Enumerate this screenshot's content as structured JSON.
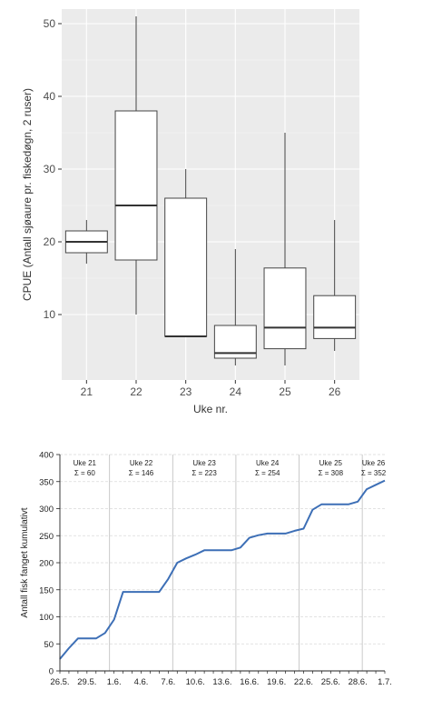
{
  "chart_data": [
    {
      "type": "box",
      "title": "",
      "xlabel": "Uke nr.",
      "ylabel": "CPUE (Antall sjøaure pr. fiskedøgn, 2 ruser)",
      "ylim": [
        1,
        52
      ],
      "yticks": [
        10,
        20,
        30,
        40,
        50
      ],
      "grid": true,
      "background": "#ebebeb",
      "categories": [
        "21",
        "22",
        "23",
        "24",
        "25",
        "26"
      ],
      "boxes": [
        {
          "week": "21",
          "min": 17,
          "q1": 18.5,
          "median": 20,
          "q3": 21.5,
          "max": 23
        },
        {
          "week": "22",
          "min": 10,
          "q1": 17.5,
          "median": 25,
          "q3": 38,
          "max": 51
        },
        {
          "week": "23",
          "min": 7,
          "q1": 7,
          "median": 7,
          "q3": 26,
          "max": 30
        },
        {
          "week": "24",
          "min": 3,
          "q1": 4,
          "median": 4.7,
          "q3": 8.5,
          "max": 19
        },
        {
          "week": "25",
          "min": 3,
          "q1": 5.3,
          "median": 8.2,
          "q3": 16.4,
          "max": 35
        },
        {
          "week": "26",
          "min": 5,
          "q1": 6.7,
          "median": 8.2,
          "q3": 12.6,
          "max": 23
        }
      ]
    },
    {
      "type": "line",
      "title": "",
      "xlabel": "",
      "ylabel": "Antall fisk fanget kumulativt",
      "ylim": [
        0,
        400
      ],
      "yticks": [
        0,
        50,
        100,
        150,
        200,
        250,
        300,
        350,
        400
      ],
      "x_tick_labels": [
        "26.5.",
        "29.5.",
        "1.6.",
        "4.6.",
        "7.6.",
        "10.6.",
        "13.6.",
        "16.6.",
        "19.6.",
        "22.6.",
        "25.6.",
        "28.6.",
        "1.7."
      ],
      "x": [
        "26.5.",
        "27.5.",
        "28.5.",
        "29.5.",
        "30.5.",
        "31.5.",
        "1.6.",
        "2.6.",
        "3.6.",
        "4.6.",
        "5.6.",
        "6.6.",
        "7.6.",
        "8.6.",
        "9.6.",
        "10.6.",
        "11.6.",
        "12.6.",
        "13.6.",
        "14.6.",
        "15.6.",
        "16.6.",
        "17.6.",
        "18.6.",
        "19.6.",
        "20.6.",
        "21.6.",
        "22.6.",
        "23.6.",
        "24.6.",
        "25.6.",
        "26.6.",
        "27.6.",
        "28.6.",
        "29.6.",
        "30.6.",
        "1.7."
      ],
      "series": [
        {
          "name": "",
          "color": "#3d6fb6",
          "values": [
            22,
            42,
            60,
            60,
            60,
            70,
            95,
            146,
            146,
            146,
            146,
            146,
            170,
            200,
            208,
            215,
            223,
            223,
            223,
            223,
            228,
            246,
            251,
            254,
            254,
            254,
            259,
            263,
            298,
            308,
            308,
            308,
            308,
            313,
            336,
            344,
            352
          ]
        }
      ],
      "week_separator_color": "#bdbdbd",
      "week_annotations": [
        {
          "week": "Uke 21",
          "sum": "Σ = 60"
        },
        {
          "week": "Uke 22",
          "sum": "Σ = 146"
        },
        {
          "week": "Uke 23",
          "sum": "Σ = 223"
        },
        {
          "week": "Uke 24",
          "sum": "Σ = 254"
        },
        {
          "week": "Uke 25",
          "sum": "Σ = 308"
        },
        {
          "week": "Uke 26",
          "sum": "Σ = 352"
        }
      ]
    }
  ]
}
